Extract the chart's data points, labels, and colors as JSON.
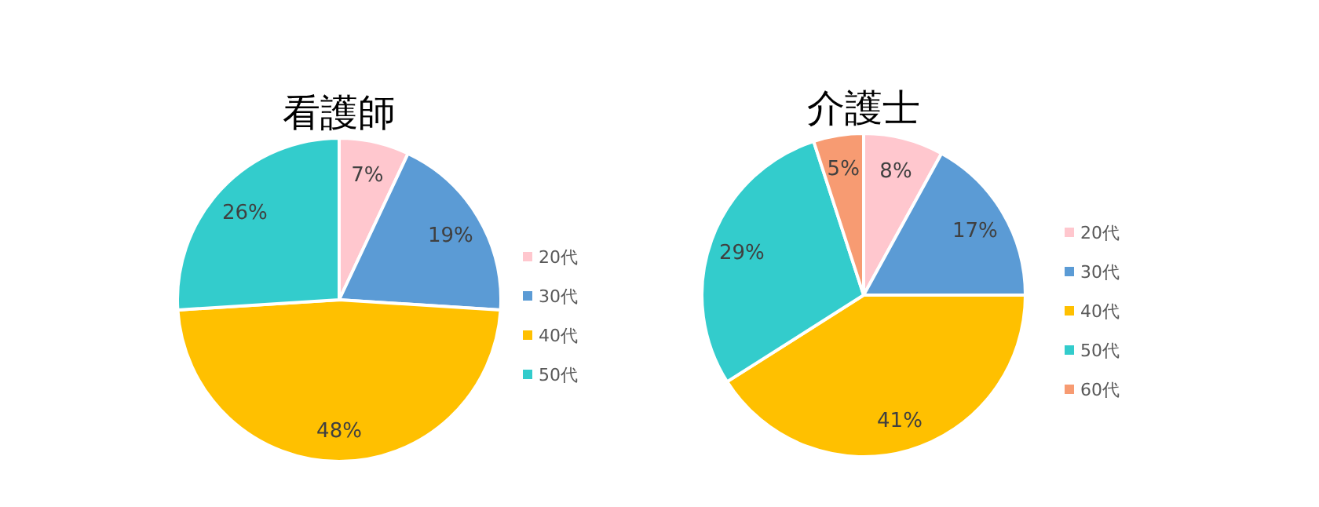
{
  "chart_data": [
    {
      "type": "pie",
      "title": "看護師",
      "categories": [
        "20代",
        "30代",
        "40代",
        "50代"
      ],
      "values": [
        7,
        19,
        48,
        26
      ],
      "value_labels": [
        "7%",
        "19%",
        "48%",
        "26%"
      ],
      "colors": [
        "#ffc7ce",
        "#5b9bd5",
        "#ffc000",
        "#33cccc"
      ],
      "legend": "right"
    },
    {
      "type": "pie",
      "title": "介護士",
      "categories": [
        "20代",
        "30代",
        "40代",
        "50代",
        "60代"
      ],
      "values": [
        8,
        17,
        41,
        29,
        5
      ],
      "value_labels": [
        "8%",
        "17%",
        "41%",
        "29%",
        "5%"
      ],
      "colors": [
        "#ffc7ce",
        "#5b9bd5",
        "#ffc000",
        "#33cccc",
        "#f79b72"
      ],
      "legend": "right"
    }
  ]
}
